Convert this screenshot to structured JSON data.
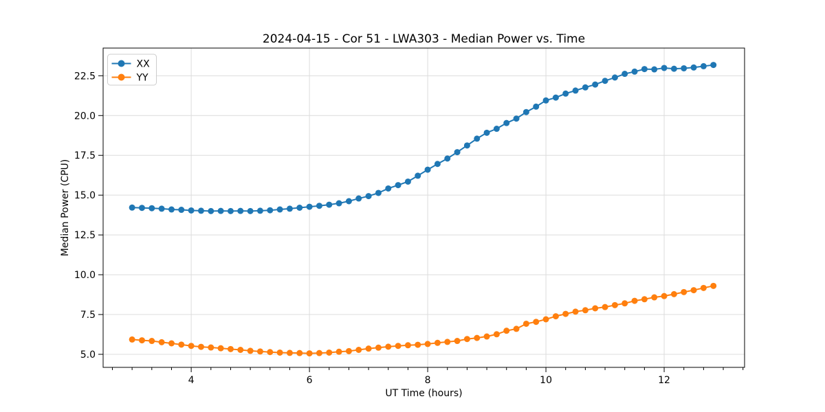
{
  "figure": {
    "background": "#ffffff"
  },
  "chart_data": {
    "type": "line",
    "title": "2024-04-15 - Cor 51 - LWA303 - Median Power vs. Time",
    "xlabel": "UT Time (hours)",
    "ylabel": "Median Power (CPU)",
    "xlim": [
      2.51,
      13.36
    ],
    "ylim": [
      4.18,
      24.24
    ],
    "grid": true,
    "legend": {
      "location": "upper left",
      "labels": [
        "XX",
        "YY"
      ]
    },
    "x_ticks": {
      "values": [
        4,
        6,
        8,
        10,
        12
      ],
      "labels": [
        "4",
        "6",
        "8",
        "10",
        "12"
      ]
    },
    "x_minor_tick_step": 0.333333,
    "y_ticks": {
      "values": [
        5.0,
        7.5,
        10.0,
        12.5,
        15.0,
        17.5,
        20.0,
        22.5
      ],
      "labels": [
        "5.0",
        "7.5",
        "10.0",
        "12.5",
        "15.0",
        "17.5",
        "20.0",
        "22.5"
      ]
    },
    "x": [
      3.0,
      3.1667,
      3.3333,
      3.5,
      3.6667,
      3.8333,
      4.0,
      4.1667,
      4.3333,
      4.5,
      4.6667,
      4.8333,
      5.0,
      5.1667,
      5.3333,
      5.5,
      5.6667,
      5.8333,
      6.0,
      6.1667,
      6.3333,
      6.5,
      6.6667,
      6.8333,
      7.0,
      7.1667,
      7.3333,
      7.5,
      7.6667,
      7.8333,
      8.0,
      8.1667,
      8.3333,
      8.5,
      8.6667,
      8.8333,
      9.0,
      9.1667,
      9.3333,
      9.5,
      9.6667,
      9.8333,
      10.0,
      10.1667,
      10.3333,
      10.5,
      10.6667,
      10.8333,
      11.0,
      11.1667,
      11.3333,
      11.5,
      11.6667,
      11.8333,
      12.0,
      12.1667,
      12.3333,
      12.5,
      12.6667,
      12.8333
    ],
    "series": [
      {
        "name": "XX",
        "color": "#1f77b4",
        "marker": "circle",
        "values": [
          14.22,
          14.2,
          14.18,
          14.15,
          14.1,
          14.08,
          14.04,
          14.02,
          14.0,
          14.01,
          14.0,
          14.01,
          14.0,
          14.02,
          14.05,
          14.1,
          14.15,
          14.21,
          14.27,
          14.33,
          14.4,
          14.49,
          14.62,
          14.79,
          14.94,
          15.14,
          15.42,
          15.63,
          15.85,
          16.22,
          16.6,
          16.96,
          17.3,
          17.7,
          18.12,
          18.55,
          18.92,
          19.17,
          19.53,
          19.81,
          20.22,
          20.56,
          20.95,
          21.13,
          21.38,
          21.57,
          21.77,
          21.95,
          22.18,
          22.39,
          22.62,
          22.76,
          22.92,
          22.9,
          22.99,
          22.94,
          22.97,
          23.02,
          23.1,
          23.18
        ]
      },
      {
        "name": "YY",
        "color": "#ff7f0e",
        "marker": "circle",
        "values": [
          5.93,
          5.88,
          5.84,
          5.76,
          5.69,
          5.61,
          5.53,
          5.47,
          5.43,
          5.38,
          5.33,
          5.28,
          5.22,
          5.18,
          5.14,
          5.11,
          5.09,
          5.08,
          5.06,
          5.08,
          5.11,
          5.16,
          5.2,
          5.28,
          5.36,
          5.42,
          5.48,
          5.53,
          5.57,
          5.6,
          5.65,
          5.72,
          5.78,
          5.84,
          5.96,
          6.03,
          6.12,
          6.26,
          6.48,
          6.6,
          6.92,
          7.04,
          7.2,
          7.39,
          7.54,
          7.68,
          7.77,
          7.89,
          7.97,
          8.09,
          8.2,
          8.36,
          8.46,
          8.58,
          8.66,
          8.78,
          8.91,
          9.03,
          9.17,
          9.3
        ]
      }
    ],
    "colors": {
      "spine": "#000000",
      "grid": "#dcdcdc",
      "tick": "#000000",
      "text": "#000000",
      "legend_border": "#cccccc",
      "legend_background": "#ffffff"
    }
  }
}
